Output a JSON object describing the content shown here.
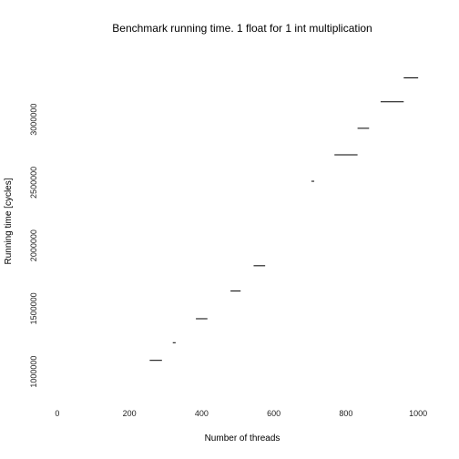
{
  "chart_data": {
    "type": "scatter",
    "title": "Benchmark running time. 1 float for 1 int multiplication",
    "xlabel": "Number of threads",
    "ylabel": "Running time [cycles]",
    "xlim": [
      -20,
      1040
    ],
    "ylim": [
      770000,
      3550000
    ],
    "x_ticks": [
      0,
      200,
      400,
      600,
      800,
      1000
    ],
    "x_tick_labels": [
      "0",
      "200",
      "400",
      "600",
      "800",
      "1000"
    ],
    "y_ticks": [
      1000000,
      1500000,
      2000000,
      2500000,
      3000000
    ],
    "y_tick_labels": [
      "1000000",
      "1500000",
      "2000000",
      "2500000",
      "3000000"
    ],
    "grid": false,
    "marker": "short horizontal dash",
    "series": [
      {
        "values": [
          {
            "x_start": 256,
            "x_end": 290,
            "y": 1090000
          },
          {
            "x_start": 320,
            "x_end": 328,
            "y": 1230000
          },
          {
            "x_start": 384,
            "x_end": 416,
            "y": 1420000
          },
          {
            "x_start": 480,
            "x_end": 508,
            "y": 1640000
          },
          {
            "x_start": 544,
            "x_end": 576,
            "y": 1840000
          },
          {
            "x_start": 704,
            "x_end": 712,
            "y": 2510000
          },
          {
            "x_start": 768,
            "x_end": 832,
            "y": 2720000
          },
          {
            "x_start": 832,
            "x_end": 864,
            "y": 2930000
          },
          {
            "x_start": 896,
            "x_end": 960,
            "y": 3140000
          },
          {
            "x_start": 960,
            "x_end": 1000,
            "y": 3330000
          }
        ]
      }
    ]
  },
  "colors": {
    "marks": "#000000",
    "text": "#000000",
    "background": "#ffffff"
  }
}
